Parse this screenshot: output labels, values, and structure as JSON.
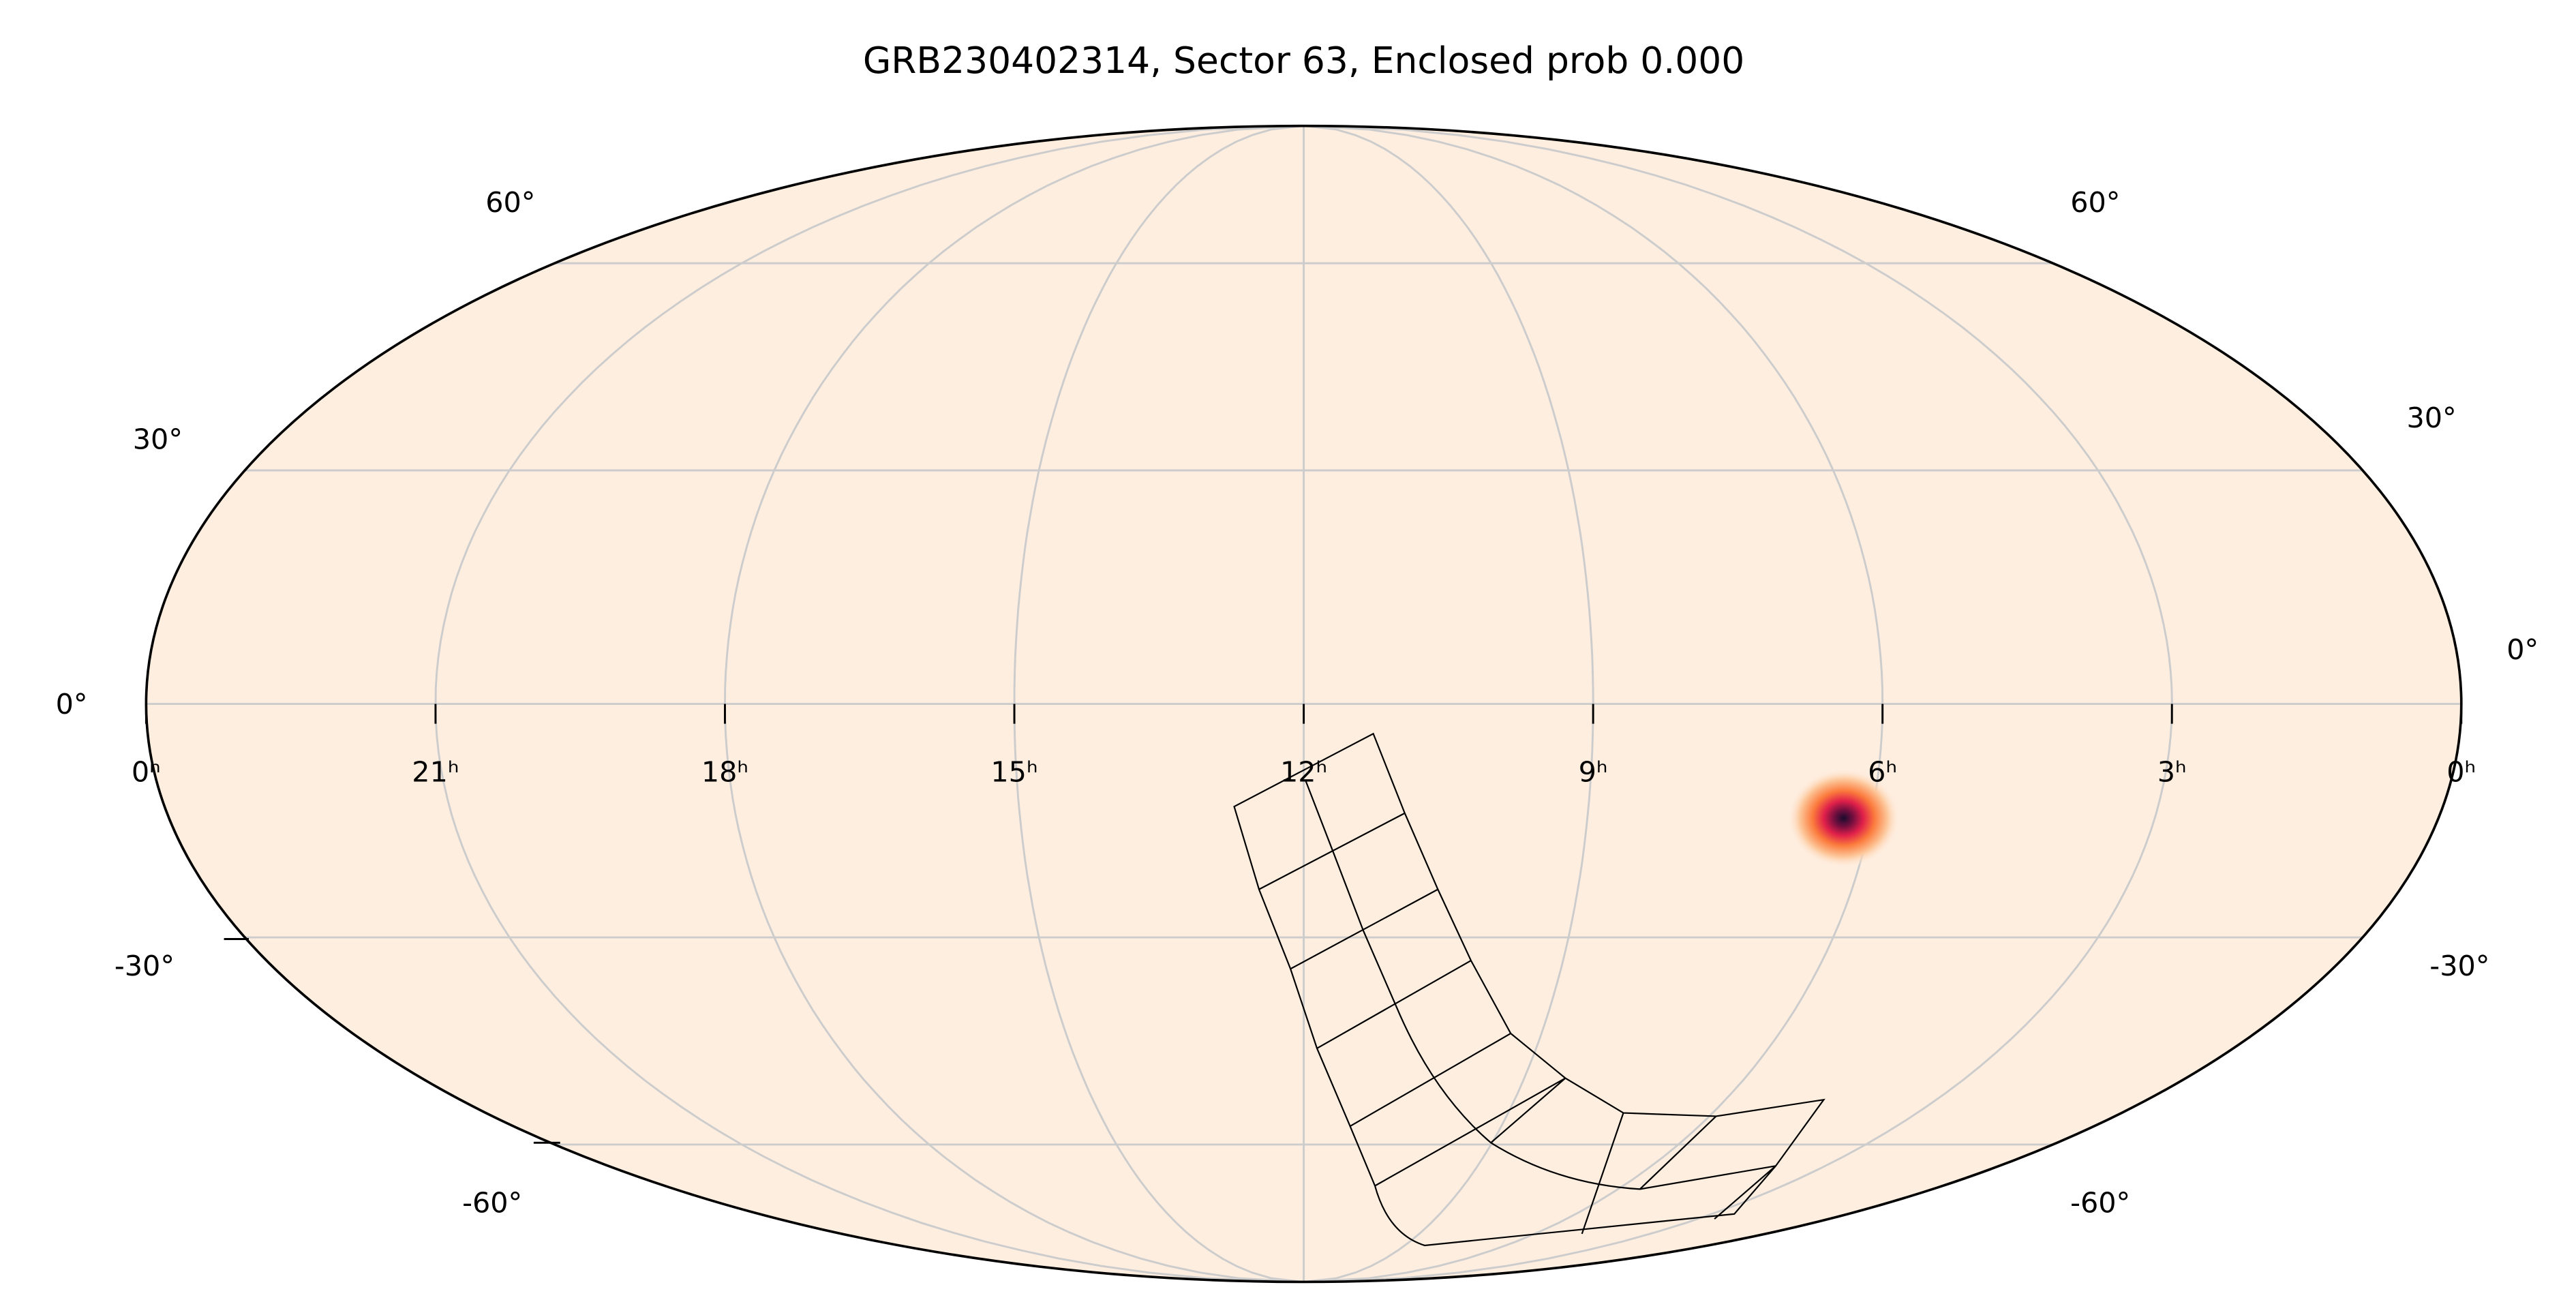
{
  "title": "GRB230402314, Sector 63, Enclosed prob 0.000",
  "ra_labels": [
    "0ʰ",
    "21ʰ",
    "18ʰ",
    "15ʰ",
    "12ʰ",
    "9ʰ",
    "6ʰ",
    "3ʰ",
    "0ʰ"
  ],
  "dec_labels_left": [
    "60°",
    "30°",
    "0°",
    "-30°",
    "-60°"
  ],
  "dec_labels_right": [
    "60°",
    "30°",
    "0°",
    "-30°",
    "-60°"
  ]
}
